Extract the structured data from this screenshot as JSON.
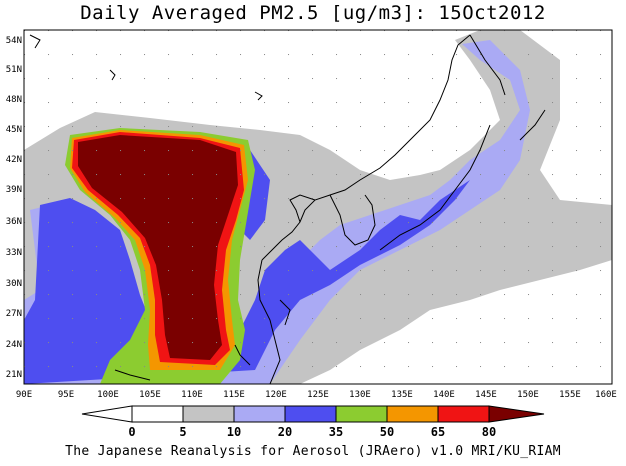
{
  "title": "Daily Averaged PM2.5 [ug/m3]: 15Oct2012",
  "footer": "The Japanese Reanalysis for Aerosol (JRAero) v1.0 MRI/KU_RIAM",
  "lat_labels": [
    "54N",
    "51N",
    "48N",
    "45N",
    "42N",
    "39N",
    "36N",
    "33N",
    "30N",
    "27N",
    "24N",
    "21N"
  ],
  "lon_labels": [
    "90E",
    "95E",
    "100E",
    "105E",
    "110E",
    "115E",
    "120E",
    "125E",
    "130E",
    "135E",
    "140E",
    "145E",
    "150E",
    "155E",
    "160E"
  ],
  "colorbar": {
    "ticks": [
      "0",
      "5",
      "10",
      "20",
      "35",
      "50",
      "65",
      "80"
    ],
    "colors": [
      "#ffffff",
      "#c4c4c4",
      "#aaaaf4",
      "#4e4ef0",
      "#8ccc30",
      "#f49600",
      "#f01414",
      "#7a0000"
    ]
  }
}
